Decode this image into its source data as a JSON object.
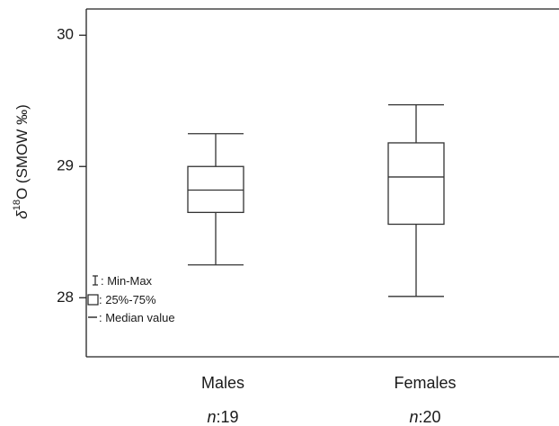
{
  "chart_data": {
    "type": "boxplot",
    "ylabel_symbol": "δ",
    "ylabel_sup": "18",
    "ylabel_rest": "O (SMOW ‰)",
    "ylim": [
      27.55,
      30.2
    ],
    "yticks": [
      "28",
      "29",
      "30"
    ],
    "categories": [
      "Males",
      "Females"
    ],
    "n_prefix": "n",
    "n_values": [
      "19",
      "20"
    ],
    "boxes": [
      {
        "category": "Males",
        "min": 28.25,
        "q1": 28.65,
        "median": 28.82,
        "q3": 29.0,
        "max": 29.25
      },
      {
        "category": "Females",
        "min": 28.01,
        "q1": 28.56,
        "median": 28.92,
        "q3": 29.18,
        "max": 29.47
      }
    ],
    "legend": {
      "minmax": ": Min-Max",
      "iqr": ": 25%-75%",
      "median": ": Median value"
    }
  }
}
